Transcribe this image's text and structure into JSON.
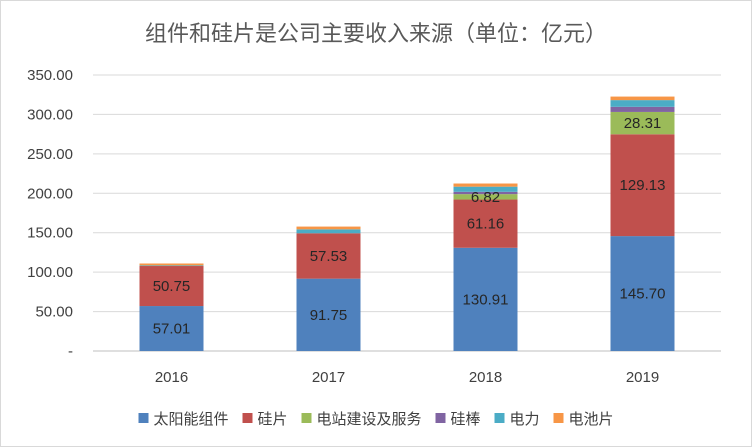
{
  "chart_data": {
    "type": "bar",
    "stacked": true,
    "title": "组件和硅片是公司主要收入来源（单位：亿元）",
    "categories": [
      "2016",
      "2017",
      "2018",
      "2019"
    ],
    "ylim": [
      0,
      350
    ],
    "yticks": [
      0,
      50,
      100,
      150,
      200,
      250,
      300,
      350
    ],
    "ytick_labels": [
      "-",
      "50.00",
      "100.00",
      "150.00",
      "200.00",
      "250.00",
      "300.00",
      "350.00"
    ],
    "grid": true,
    "legend_position": "bottom",
    "series": [
      {
        "name": "太阳能组件",
        "color": "#4f81bd",
        "values": [
          57.01,
          91.75,
          130.91,
          145.7
        ],
        "labels": [
          "57.01",
          "91.75",
          "130.91",
          "145.70"
        ]
      },
      {
        "name": "硅片",
        "color": "#c0504d",
        "values": [
          50.75,
          57.53,
          61.16,
          129.13
        ],
        "labels": [
          "50.75",
          "57.53",
          "61.16",
          "129.13"
        ]
      },
      {
        "name": "电站建设及服务",
        "color": "#9bbb59",
        "values": [
          0.0,
          0.0,
          6.82,
          28.31
        ],
        "labels": [
          "",
          "",
          "6.82",
          "28.31"
        ]
      },
      {
        "name": "硅棒",
        "color": "#8064a2",
        "values": [
          0.0,
          0.0,
          3.0,
          6.5
        ],
        "labels": [
          "",
          "",
          "",
          ""
        ]
      },
      {
        "name": "电力",
        "color": "#4bacc6",
        "values": [
          0.8,
          5.0,
          6.5,
          8.5
        ],
        "labels": [
          "",
          "",
          "",
          ""
        ]
      },
      {
        "name": "电池片",
        "color": "#f79646",
        "values": [
          2.4,
          3.5,
          4.0,
          4.5
        ],
        "labels": [
          "",
          "",
          "",
          ""
        ]
      }
    ]
  }
}
